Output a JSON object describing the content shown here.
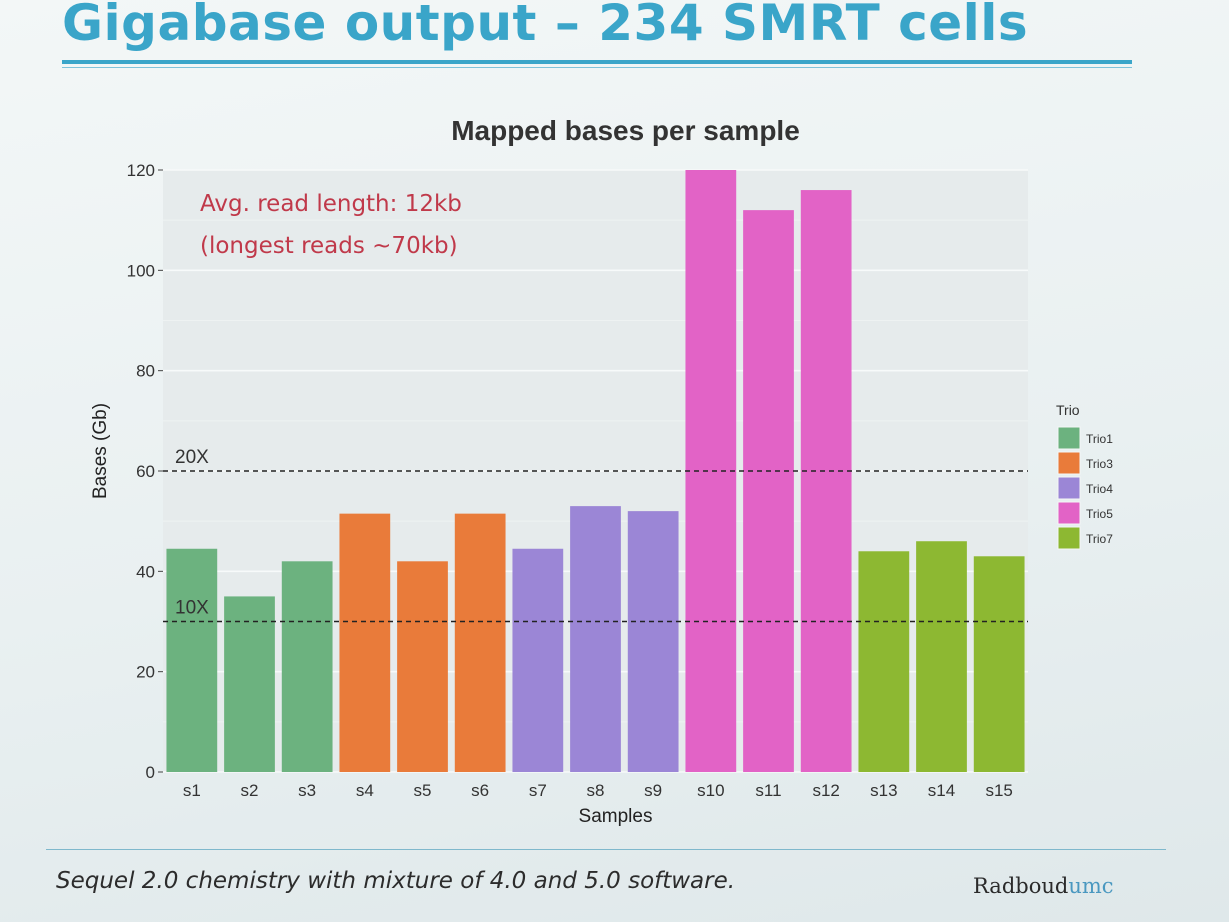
{
  "slide": {
    "title": "Gigabase output – 234 SMRT cells",
    "footer": "Sequel 2.0 chemistry with mixture of 4.0 and 5.0 software.",
    "logo_part1": "Radboud",
    "logo_part2": "umc",
    "colors": {
      "title": "#3aa5c9",
      "logo_accent": "#4a98c0"
    }
  },
  "chart_data": {
    "type": "bar",
    "title": "Mapped bases per sample",
    "xlabel": "Samples",
    "ylabel": "Bases (Gb)",
    "ylim": [
      0,
      120
    ],
    "yticks": [
      0,
      20,
      40,
      60,
      80,
      100,
      120
    ],
    "grid": true,
    "categories": [
      "s1",
      "s2",
      "s3",
      "s4",
      "s5",
      "s6",
      "s7",
      "s8",
      "s9",
      "s10",
      "s11",
      "s12",
      "s13",
      "s14",
      "s15"
    ],
    "values": [
      44.5,
      35,
      42,
      51.5,
      42,
      51.5,
      44.5,
      53,
      52,
      120,
      112,
      116,
      44,
      46,
      43
    ],
    "groups": [
      "Trio1",
      "Trio1",
      "Trio1",
      "Trio3",
      "Trio3",
      "Trio3",
      "Trio4",
      "Trio4",
      "Trio4",
      "Trio5",
      "Trio5",
      "Trio5",
      "Trio7",
      "Trio7",
      "Trio7"
    ],
    "legend": {
      "title": "Trio",
      "placement": "right",
      "entries": [
        {
          "name": "Trio1",
          "color": "#6cb27f"
        },
        {
          "name": "Trio3",
          "color": "#e97b3a"
        },
        {
          "name": "Trio4",
          "color": "#9b86d6"
        },
        {
          "name": "Trio5",
          "color": "#e263c6"
        },
        {
          "name": "Trio7",
          "color": "#8db832"
        }
      ]
    },
    "reference_lines": [
      {
        "label": "20X",
        "value": 60,
        "style": "dashed"
      },
      {
        "label": "10X",
        "value": 30,
        "style": "dashed"
      }
    ],
    "annotations": [
      "Avg. read length: 12kb",
      "(longest reads ~70kb)"
    ]
  }
}
